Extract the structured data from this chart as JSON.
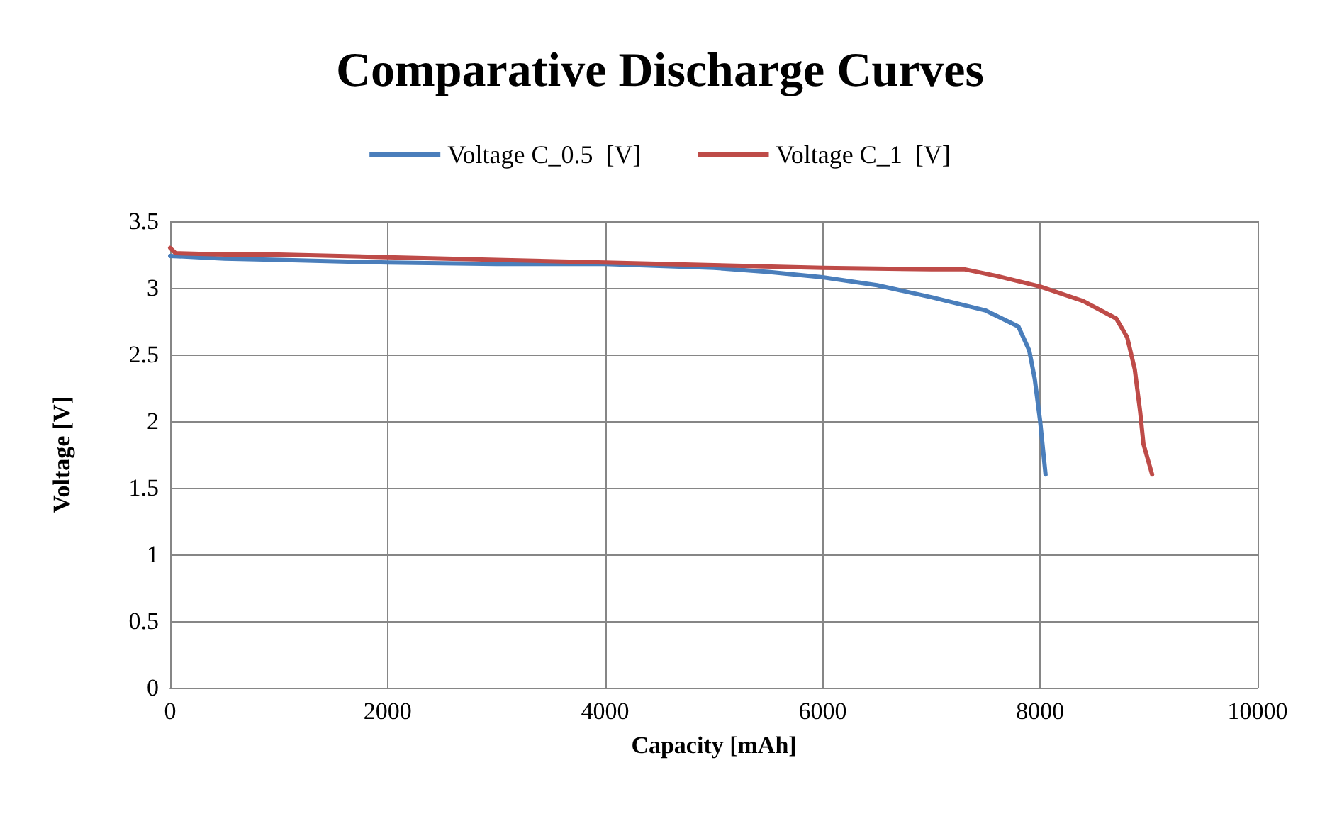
{
  "chart_data": {
    "type": "line",
    "title": "Comparative Discharge Curves",
    "xlabel": "Capacity [mAh]",
    "ylabel": "Voltage [V]",
    "xlim": [
      0,
      10000
    ],
    "xticks": [
      0,
      2000,
      4000,
      6000,
      8000,
      10000
    ],
    "ylim": [
      0,
      3.5
    ],
    "yticks": [
      0,
      0.5,
      1,
      1.5,
      2,
      2.5,
      3,
      3.5
    ],
    "grid": true,
    "legend": "top",
    "marker": "none",
    "line_style": "solid",
    "series": [
      {
        "name": "Voltage C_0.5  [V]",
        "color": "#4a7ebb",
        "x": [
          0,
          500,
          1000,
          2000,
          3000,
          4000,
          5000,
          5500,
          6000,
          6500,
          7000,
          7500,
          7800,
          7900,
          7950,
          8000,
          8050
        ],
        "values": [
          3.24,
          3.22,
          3.21,
          3.19,
          3.18,
          3.18,
          3.15,
          3.12,
          3.08,
          3.02,
          2.93,
          2.83,
          2.71,
          2.53,
          2.32,
          2.0,
          1.6
        ]
      },
      {
        "name": "Voltage C_1  [V]",
        "color": "#be4b48",
        "x": [
          0,
          50,
          500,
          1000,
          2000,
          3000,
          4000,
          5000,
          6000,
          7000,
          7300,
          7600,
          8000,
          8400,
          8700,
          8800,
          8870,
          8920,
          8950,
          9030
        ],
        "values": [
          3.3,
          3.26,
          3.25,
          3.25,
          3.23,
          3.21,
          3.19,
          3.17,
          3.15,
          3.14,
          3.14,
          3.09,
          3.01,
          2.9,
          2.77,
          2.63,
          2.39,
          2.07,
          1.83,
          1.6
        ]
      }
    ]
  }
}
